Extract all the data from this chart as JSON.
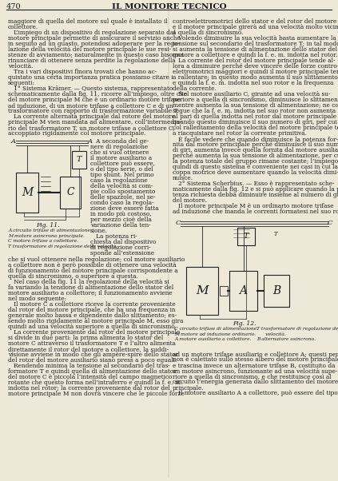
{
  "page_number": "470",
  "journal_title": "IL MONITORE TECNICO",
  "background_color": "#ede8d8",
  "text_color": "#1a1a1a",
  "line_color": "#222222",
  "col1_full_lines": [
    "maggiore di quella del motore sul quale è installato il",
    "collettore.",
    "   L’impiego di un dispositivo di regolazione separato dal",
    "motore principale permette di assicurare il servizio anche",
    "in seguito ad un guasto, potendosi adoperare per la rego-",
    "lazione della velocità del motore principale le sue resi-",
    "stenze di avviamento; naturalmente in questo caso bisogna",
    "rinunciare di ottenere senza perdite la regolazione della",
    "velocità.",
    "   Tra i vari dispositivi finora trovati che hanno ac-",
    "quistato una certa importanza pratica possiamo citare i",
    "seguenti:",
    "   1° Sistema Krämer. — Questo sistema, rappresentato",
    "schematicamente dalla fig. 11, ricorre all’impiego, oltre che",
    "del motore principale M che è un ordinario motore trifase",
    "ad induzione, di un motore trifase a collettore C e di un",
    "trasformatore con rapporto di trasformazione variabile T.",
    "   La corrente alternata principale dal rotore del motore",
    "principale M vien mandata ad alimentare, coll’intermedia-",
    "rio del trasformatore T, un motore trifase a collettore C,",
    "accoppiato rigidamente col motore principale."
  ],
  "col1_right_half_lines": [
    "   A seconda del ge-",
    "nere di regolazione",
    "che si vuol ottenere",
    "il motore ausiliario a",
    "collettore può essere,",
    "o del tipo serie, o del",
    "tipo shunt. Nel primo",
    "caso la regolazione",
    "della velocità si com-",
    "pie collo spostamento",
    "delle spazzole, nel se-",
    "condo caso la regola-",
    "zione deve essere fatta",
    "in modo più costoso,",
    "per mezzo cioè della",
    "variazione della ten-",
    "sione.",
    "   La potenza ri-",
    "chiesta dal dispositivo",
    "di regolazione corri-",
    "sponde all’estensione"
  ],
  "col1_bottom_lines": [
    "che si vuol ottenere nella regolazione; col motore ausiliario",
    "a collettore non è però possibile di ottenere una velocità",
    "di funzionamento del motore principale corrispondente a",
    "quella di sincronismo, o superiore a questa.",
    "   Nel caso della fig. 11 la regolazione della velocità si",
    "fa variando la tensione di alimentazione dello stator del",
    "motore ausiliario a collettore; il funzionamento avviene",
    "nel modo seguente:",
    "   Il motore C a collettore riceve la corrente proveniente",
    "dal rotor del motore principale, che ha una frequenza in",
    "generale molto bassa e dipendente dallo slittamento; es-",
    "sendo molto rigidamente al motore principale M, esso gira",
    "quindi ad una velocità superiore a quella di sincronismo.",
    "   La corrente proveniente dal rotor del motore principale",
    "si divide in due parti: la prima alimenta lo stator del",
    "motore C attraverso il trasformatore T e l’altro alimenta",
    "direttamente il rotor del motore a collettore, la suddi-",
    "visione avviene in modo che gli ampère-spire dello stator",
    "del rotor del motore ausiliario siano press a poco eguali.",
    "   Rendendo minima la tensione al secondario del tras-",
    "formatore T e quindi quella di alimentazione dello stator",
    "del motore C è piccola l’intensità del campo magnetico",
    "rotante che questo forma nell’intraferro e quindi la f. e. m.",
    "indotta nel rotor; la corrente proveniente dal rotor del",
    "motore principale M non dovrà vincere che le piccole forze"
  ],
  "col2_top_lines": [
    "controelettromotrici dello stator e del rotor del motore C",
    "e il motore principale girerà ad una velocità molto vicina",
    "a quella di sincronismo.",
    "   Volendo diminuire la sua velocità basta aumentare la",
    "tensione sul secondario del trasformatore T; in tal modo",
    "si aumenta la tensione di alimentazione dello stator del",
    "motore a collettore e quindi la f. e. m. indotta nel rotor.",
    "   La corrente del rotor del motore principale tende al-",
    "lora a diminuire perché deve vincere delle forze contro-",
    "elettromotrici maggiori e quindi il motore principale tende",
    "a rallentare; in questo modo aumenta il suo slittamento",
    "e quindi la f. e. m. indotta nel suo rotor e la frequenza",
    "della corrente.",
    "   Nel motore ausiliario C, girante ad una velocità su-",
    "periore a quella di sincronismo, diminuisce lo slittamento,",
    "mentre aumenta la sua tensione di alimentazione; ne con-",
    "segue che la f. e. m. indotta nel suo rotor non aumenta",
    "al pari di quella indotta nel rotor dal motore principale",
    "quando questo diminuisce il suo numero di giri, per cui",
    "col rallentamento della velocità del motore principale tende",
    "a riacquistare nel rotor la corrente primitiva.",
    "   È facile vedere che quando diminuisce la potenza for-",
    "nita dal motore principale perché diminuisce il suo numero",
    "di giri, aumenta invece quella fornita dal motore ausiliario",
    "perché aumenta la sua tensione di alimentazione, per cui",
    "la potenza totale del gruppo rimane costante; l’impiego",
    "quindi di questo sistema è conveniente nei casi in cui la",
    "coppa motrice deve aumentare quando la velocità dimi-",
    "nuisce.",
    "   2° Sistema Scherbius. — Esso è rappresentato sche-",
    "maticamente dalla fig. 12 e si può applicare quando la po-",
    "tenza richiesta debba diminuire insieme al numero di giri",
    "del motore.",
    "   Il motore principale M è un ordinario motore trifase",
    "ad induzione che manda le correnti formatesi nel suo rotor"
  ],
  "col2_bottom_lines": [
    "ad un motore trifase ausiliario e collettore A; questi però",
    "non è calettato sullo stesso albero del motore principale",
    "e trascina invece un alternatore trifase B, costituito da",
    "un motore asincrono, funzionante ad una velocità supe-",
    "riore a quella di sincronismo, e che restituisce così al",
    "circuito l’energia generata dallo slittamento del motore",
    "principale.",
    "   Il motore ausiliario A a collettore, può essere del tipo"
  ],
  "fig11_caption": "Fig. 11.",
  "fig11_labels": [
    "A circuito trifase di alimentazione.",
    "M motore asincrono principale.",
    "C motore trifase a collettore.",
    "T trasformatore di regolazione della velocità."
  ],
  "fig12_caption": "Fig. 12.",
  "fig12_labels_left": [
    "C circuito trifase di alimentazione.",
    "M motore ad induzione ordinario.",
    "A motore ausiliario a collettore."
  ],
  "fig12_labels_right": [
    "T trasformatore di regolazione della",
    "      velocità.",
    "B alternatore asincrono."
  ]
}
